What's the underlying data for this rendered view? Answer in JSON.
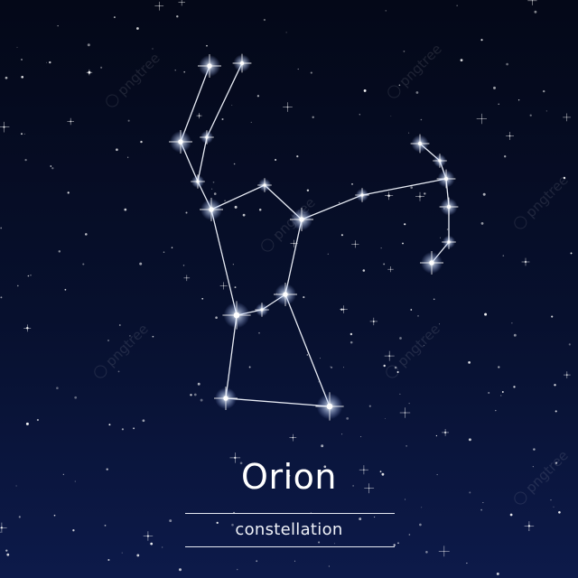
{
  "constellation": {
    "name": "Orion",
    "subtitle": "constellation"
  },
  "watermark": {
    "text": "pngtree"
  },
  "colors": {
    "background_top": "#040818",
    "background_bottom": "#0d1a4a",
    "star": "#ffffff",
    "line": "#e8ecf5",
    "text": "#ffffff"
  }
}
